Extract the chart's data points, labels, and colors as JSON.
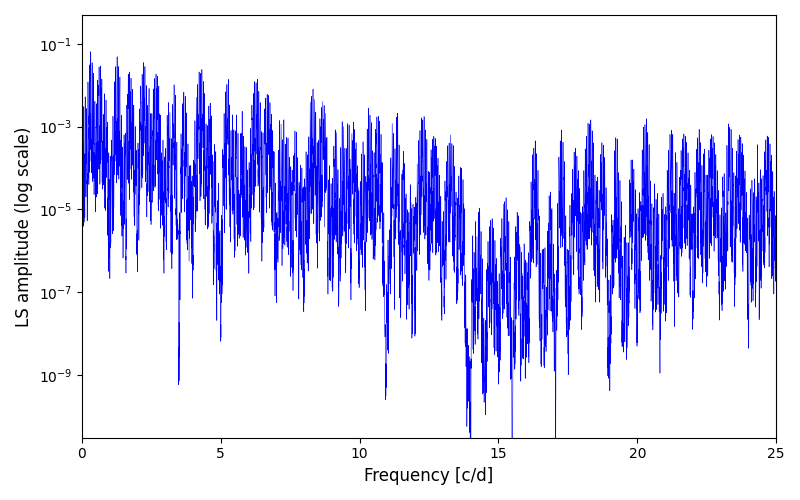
{
  "xlabel": "Frequency [c/d]",
  "ylabel": "LS amplitude (log scale)",
  "line_color": "blue",
  "xlim": [
    0,
    25
  ],
  "ylim": [
    3e-11,
    0.5
  ],
  "xmin": 0.0,
  "xmax": 25.0,
  "n_points": 10000,
  "background_color": "#ffffff",
  "seed": 7,
  "fig_width": 8.0,
  "fig_height": 5.0,
  "dpi": 100,
  "yticks": [
    -9,
    -7,
    -5,
    -3,
    -1
  ],
  "xticks": [
    0,
    5,
    10,
    15,
    20,
    25
  ]
}
